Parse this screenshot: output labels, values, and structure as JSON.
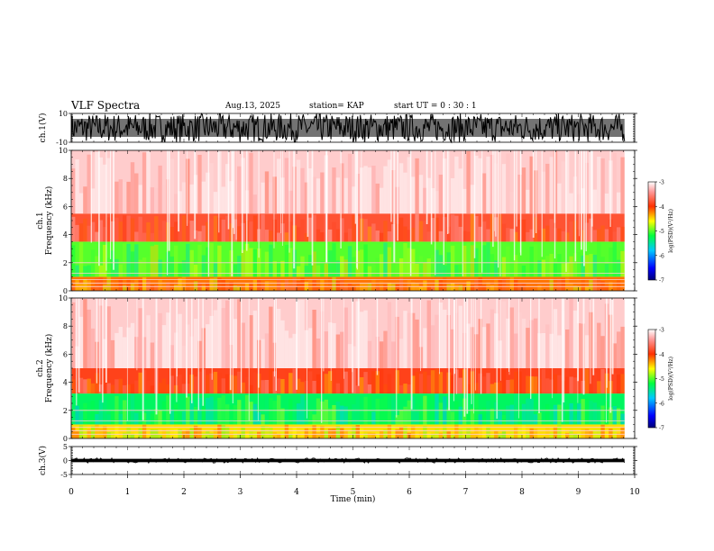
{
  "header": {
    "title": "VLF Spectra",
    "date": "Aug.13, 2025",
    "station": "station= KAP",
    "start": "start  UT =   0 : 30 : 1"
  },
  "chart_data": [
    {
      "type": "line",
      "name": "ch1-waveform",
      "title": "",
      "ylabel": "ch.1(V)",
      "ylim": [
        -10,
        10
      ],
      "yticks": [
        "10",
        "-10"
      ],
      "description_values": {
        "approx_min": -10,
        "approx_max": 10
      }
    },
    {
      "type": "heatmap",
      "name": "ch1-spectrogram",
      "ylabel": "ch.1\nFrequency (kHz)",
      "ylabel_lines": [
        "ch.1",
        "Frequency  (kHz)"
      ],
      "ylim": [
        0,
        10
      ],
      "yticks": [
        "0",
        "2",
        "4",
        "6",
        "8",
        "10"
      ],
      "bands": [
        {
          "from_khz": 0,
          "to_khz": 1,
          "level": -4.2
        },
        {
          "from_khz": 1,
          "to_khz": 3.5,
          "level": -5.0
        },
        {
          "from_khz": 3.5,
          "to_khz": 5.5,
          "level": -3.8
        },
        {
          "from_khz": 5.5,
          "to_khz": 10,
          "level": -3.2
        }
      ],
      "colorbar": {
        "label": "log(PSD)(V²/Hz)",
        "ticks": [
          "-3",
          "-4",
          "-5",
          "-6",
          "-7"
        ],
        "range": [
          -7,
          -3
        ]
      }
    },
    {
      "type": "heatmap",
      "name": "ch2-spectrogram",
      "ylabel_lines": [
        "ch.2",
        "Frequency  (kHz)"
      ],
      "ylim": [
        0,
        10
      ],
      "yticks": [
        "0",
        "2",
        "4",
        "6",
        "8",
        "10"
      ],
      "bands": [
        {
          "from_khz": 0,
          "to_khz": 1,
          "level": -4.5
        },
        {
          "from_khz": 1,
          "to_khz": 3.2,
          "level": -5.3
        },
        {
          "from_khz": 3.2,
          "to_khz": 5.0,
          "level": -3.9
        },
        {
          "from_khz": 5.0,
          "to_khz": 10,
          "level": -3.2
        }
      ],
      "colorbar": {
        "label": "log(PSD)(V²/Hz)",
        "ticks": [
          "-3",
          "-4",
          "-5",
          "-6",
          "-7"
        ],
        "range": [
          -7,
          -3
        ]
      }
    },
    {
      "type": "line",
      "name": "ch3-waveform",
      "ylabel": "ch.3(V)",
      "ylim": [
        -5,
        5
      ],
      "yticks": [
        "5",
        "0",
        "-5"
      ],
      "description_values": {
        "approx_min": -0.5,
        "approx_max": 0.5
      }
    }
  ],
  "xaxis": {
    "label": "Time  (min)",
    "range": [
      0,
      10
    ],
    "ticks": [
      "0",
      "1",
      "2",
      "3",
      "4",
      "5",
      "6",
      "7",
      "8",
      "9",
      "10"
    ],
    "data_end": 9.82
  }
}
